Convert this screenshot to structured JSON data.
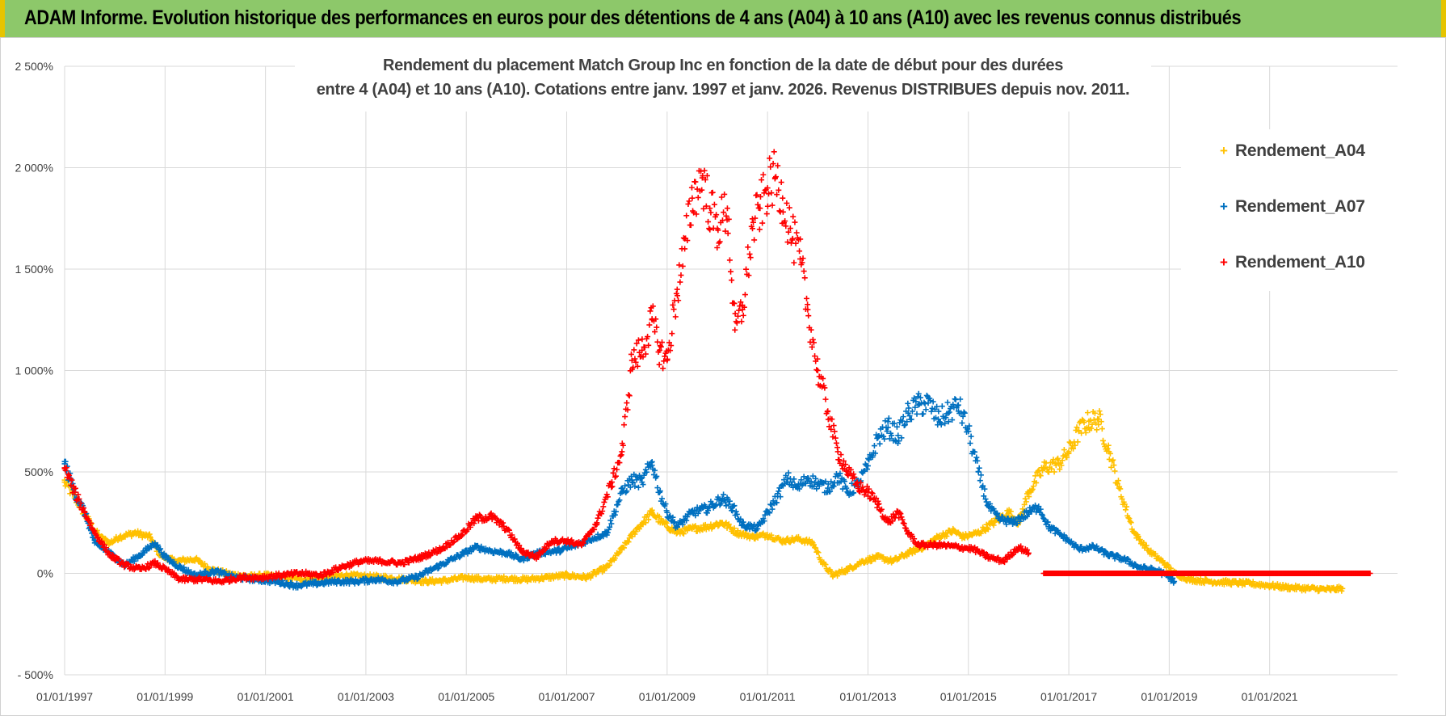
{
  "header": {
    "banner_text": "ADAM Informe. Evolution historique des performances en euros pour des détentions de 4 ans (A04) à 10 ans (A10) avec les revenus connus distribués"
  },
  "chart_data": {
    "type": "scatter",
    "title_line1": "Rendement du placement Match Group Inc en fonction de la date de début pour des durées",
    "title_line2": "entre 4 (A04) et 10 ans (A10). Cotations entre janv. 1997 et janv. 2026. Revenus DISTRIBUES depuis nov. 2011.",
    "xlabel": "",
    "ylabel": "",
    "x_range": [
      1997.0,
      2023.0
    ],
    "ylim": [
      -500,
      2500
    ],
    "y_ticks": [
      {
        "value": 2500,
        "label": "2 500%"
      },
      {
        "value": 2000,
        "label": "2 000%"
      },
      {
        "value": 1500,
        "label": "1 500%"
      },
      {
        "value": 1000,
        "label": "1 000%"
      },
      {
        "value": 500,
        "label": "500%"
      },
      {
        "value": 0,
        "label": "0%"
      },
      {
        "value": -500,
        "label": "- 500%"
      }
    ],
    "x_ticks": [
      {
        "value": 1997,
        "label": "01/01/1997"
      },
      {
        "value": 1999,
        "label": "01/01/1999"
      },
      {
        "value": 2001,
        "label": "01/01/2001"
      },
      {
        "value": 2003,
        "label": "01/01/2003"
      },
      {
        "value": 2005,
        "label": "01/01/2005"
      },
      {
        "value": 2007,
        "label": "01/01/2007"
      },
      {
        "value": 2009,
        "label": "01/01/2009"
      },
      {
        "value": 2011,
        "label": "01/01/2011"
      },
      {
        "value": 2013,
        "label": "01/01/2013"
      },
      {
        "value": 2015,
        "label": "01/01/2015"
      },
      {
        "value": 2017,
        "label": "01/01/2017"
      },
      {
        "value": 2019,
        "label": "01/01/2019"
      },
      {
        "value": 2021,
        "label": "01/01/2021"
      }
    ],
    "grid": true,
    "legend_position": "top-right",
    "series": [
      {
        "name": "Rendement_A04",
        "color": "#ffc000",
        "points": [
          [
            1997.0,
            450
          ],
          [
            1997.2,
            380
          ],
          [
            1997.5,
            250
          ],
          [
            1997.7,
            180
          ],
          [
            1997.9,
            150
          ],
          [
            1998.1,
            180
          ],
          [
            1998.4,
            200
          ],
          [
            1998.7,
            180
          ],
          [
            1998.9,
            90
          ],
          [
            1999.2,
            60
          ],
          [
            1999.6,
            70
          ],
          [
            1999.9,
            20
          ],
          [
            2000.3,
            -5
          ],
          [
            2000.7,
            -15
          ],
          [
            2001.0,
            -10
          ],
          [
            2001.4,
            -20
          ],
          [
            2001.8,
            -30
          ],
          [
            2002.2,
            -20
          ],
          [
            2002.6,
            -10
          ],
          [
            2003.0,
            -15
          ],
          [
            2003.4,
            -20
          ],
          [
            2003.8,
            -30
          ],
          [
            2004.2,
            -40
          ],
          [
            2004.6,
            -35
          ],
          [
            2005.0,
            -20
          ],
          [
            2005.4,
            -30
          ],
          [
            2005.8,
            -25
          ],
          [
            2006.2,
            -30
          ],
          [
            2006.6,
            -20
          ],
          [
            2007.0,
            -10
          ],
          [
            2007.4,
            -20
          ],
          [
            2007.8,
            30
          ],
          [
            2008.1,
            120
          ],
          [
            2008.4,
            220
          ],
          [
            2008.7,
            300
          ],
          [
            2008.9,
            250
          ],
          [
            2009.2,
            200
          ],
          [
            2009.5,
            220
          ],
          [
            2009.8,
            230
          ],
          [
            2010.1,
            250
          ],
          [
            2010.4,
            200
          ],
          [
            2010.7,
            180
          ],
          [
            2011.0,
            190
          ],
          [
            2011.3,
            160
          ],
          [
            2011.6,
            170
          ],
          [
            2011.9,
            150
          ],
          [
            2012.1,
            50
          ],
          [
            2012.3,
            -10
          ],
          [
            2012.6,
            20
          ],
          [
            2012.9,
            60
          ],
          [
            2013.2,
            80
          ],
          [
            2013.5,
            60
          ],
          [
            2013.8,
            100
          ],
          [
            2014.1,
            130
          ],
          [
            2014.4,
            180
          ],
          [
            2014.7,
            210
          ],
          [
            2014.9,
            180
          ],
          [
            2015.2,
            200
          ],
          [
            2015.5,
            250
          ],
          [
            2015.8,
            300
          ],
          [
            2016.0,
            250
          ],
          [
            2016.2,
            400
          ],
          [
            2016.5,
            520
          ],
          [
            2016.8,
            540
          ],
          [
            2017.0,
            600
          ],
          [
            2017.2,
            700
          ],
          [
            2017.4,
            750
          ],
          [
            2017.6,
            760
          ],
          [
            2017.8,
            600
          ],
          [
            2018.0,
            420
          ],
          [
            2018.3,
            200
          ],
          [
            2018.6,
            110
          ],
          [
            2018.9,
            50
          ],
          [
            2019.1,
            0
          ],
          [
            2019.4,
            -30
          ],
          [
            2019.8,
            -40
          ],
          [
            2020.2,
            -45
          ],
          [
            2020.6,
            -50
          ],
          [
            2021.0,
            -60
          ],
          [
            2021.4,
            -70
          ],
          [
            2021.8,
            -75
          ],
          [
            2022.2,
            -80
          ],
          [
            2022.45,
            -75
          ]
        ]
      },
      {
        "name": "Rendement_A07",
        "color": "#0070c0",
        "points": [
          [
            1997.0,
            540
          ],
          [
            1997.2,
            400
          ],
          [
            1997.4,
            300
          ],
          [
            1997.6,
            150
          ],
          [
            1997.9,
            100
          ],
          [
            1998.2,
            40
          ],
          [
            1998.5,
            90
          ],
          [
            1998.8,
            150
          ],
          [
            1999.0,
            80
          ],
          [
            1999.3,
            30
          ],
          [
            1999.6,
            -10
          ],
          [
            2000.0,
            10
          ],
          [
            2000.4,
            -20
          ],
          [
            2000.8,
            -30
          ],
          [
            2001.2,
            -40
          ],
          [
            2001.6,
            -60
          ],
          [
            2002.0,
            -50
          ],
          [
            2002.4,
            -40
          ],
          [
            2002.8,
            -40
          ],
          [
            2003.2,
            -30
          ],
          [
            2003.6,
            -40
          ],
          [
            2004.0,
            -20
          ],
          [
            2004.4,
            30
          ],
          [
            2004.8,
            80
          ],
          [
            2005.2,
            130
          ],
          [
            2005.5,
            110
          ],
          [
            2005.8,
            100
          ],
          [
            2006.1,
            70
          ],
          [
            2006.4,
            100
          ],
          [
            2006.8,
            110
          ],
          [
            2007.1,
            130
          ],
          [
            2007.4,
            160
          ],
          [
            2007.8,
            200
          ],
          [
            2008.1,
            400
          ],
          [
            2008.3,
            460
          ],
          [
            2008.5,
            450
          ],
          [
            2008.7,
            550
          ],
          [
            2008.85,
            400
          ],
          [
            2009.0,
            300
          ],
          [
            2009.2,
            230
          ],
          [
            2009.5,
            300
          ],
          [
            2009.8,
            320
          ],
          [
            2010.1,
            370
          ],
          [
            2010.3,
            330
          ],
          [
            2010.5,
            240
          ],
          [
            2010.8,
            220
          ],
          [
            2011.0,
            300
          ],
          [
            2011.2,
            380
          ],
          [
            2011.4,
            470
          ],
          [
            2011.6,
            420
          ],
          [
            2011.8,
            470
          ],
          [
            2012.0,
            440
          ],
          [
            2012.2,
            420
          ],
          [
            2012.4,
            480
          ],
          [
            2012.6,
            400
          ],
          [
            2012.8,
            440
          ],
          [
            2013.0,
            530
          ],
          [
            2013.2,
            670
          ],
          [
            2013.4,
            720
          ],
          [
            2013.6,
            680
          ],
          [
            2013.8,
            790
          ],
          [
            2014.0,
            830
          ],
          [
            2014.2,
            840
          ],
          [
            2014.4,
            760
          ],
          [
            2014.6,
            790
          ],
          [
            2014.8,
            830
          ],
          [
            2015.0,
            700
          ],
          [
            2015.2,
            500
          ],
          [
            2015.4,
            330
          ],
          [
            2015.6,
            270
          ],
          [
            2015.9,
            250
          ],
          [
            2016.2,
            300
          ],
          [
            2016.4,
            330
          ],
          [
            2016.6,
            230
          ],
          [
            2016.9,
            180
          ],
          [
            2017.2,
            120
          ],
          [
            2017.5,
            130
          ],
          [
            2017.8,
            90
          ],
          [
            2018.1,
            70
          ],
          [
            2018.4,
            30
          ],
          [
            2018.8,
            10
          ],
          [
            2019.0,
            -20
          ],
          [
            2019.1,
            -40
          ]
        ]
      },
      {
        "name": "Rendement_A10",
        "color": "#ff0000",
        "points": [
          [
            1997.0,
            520
          ],
          [
            1997.2,
            400
          ],
          [
            1997.4,
            300
          ],
          [
            1997.6,
            200
          ],
          [
            1997.9,
            90
          ],
          [
            1998.2,
            40
          ],
          [
            1998.5,
            20
          ],
          [
            1998.8,
            50
          ],
          [
            1999.0,
            20
          ],
          [
            1999.3,
            -30
          ],
          [
            1999.7,
            -30
          ],
          [
            2000.1,
            -40
          ],
          [
            2000.5,
            -20
          ],
          [
            2000.9,
            -20
          ],
          [
            2001.3,
            -10
          ],
          [
            2001.7,
            0
          ],
          [
            2002.1,
            -10
          ],
          [
            2002.5,
            30
          ],
          [
            2002.9,
            60
          ],
          [
            2003.3,
            60
          ],
          [
            2003.7,
            50
          ],
          [
            2004.1,
            80
          ],
          [
            2004.5,
            120
          ],
          [
            2004.9,
            190
          ],
          [
            2005.2,
            270
          ],
          [
            2005.5,
            280
          ],
          [
            2005.8,
            220
          ],
          [
            2006.1,
            110
          ],
          [
            2006.4,
            80
          ],
          [
            2006.7,
            160
          ],
          [
            2007.0,
            160
          ],
          [
            2007.3,
            140
          ],
          [
            2007.6,
            250
          ],
          [
            2007.9,
            450
          ],
          [
            2008.1,
            600
          ],
          [
            2008.3,
            1050
          ],
          [
            2008.5,
            1100
          ],
          [
            2008.7,
            1250
          ],
          [
            2008.85,
            1100
          ],
          [
            2009.0,
            1050
          ],
          [
            2009.2,
            1400
          ],
          [
            2009.35,
            1600
          ],
          [
            2009.5,
            1850
          ],
          [
            2009.7,
            1950
          ],
          [
            2009.85,
            1800
          ],
          [
            2010.0,
            1700
          ],
          [
            2010.2,
            1800
          ],
          [
            2010.35,
            1200
          ],
          [
            2010.5,
            1300
          ],
          [
            2010.7,
            1700
          ],
          [
            2010.85,
            1800
          ],
          [
            2011.0,
            1900
          ],
          [
            2011.15,
            1950
          ],
          [
            2011.3,
            1850
          ],
          [
            2011.5,
            1650
          ],
          [
            2011.65,
            1550
          ],
          [
            2011.8,
            1300
          ],
          [
            2012.0,
            1000
          ],
          [
            2012.2,
            800
          ],
          [
            2012.4,
            600
          ],
          [
            2012.6,
            500
          ],
          [
            2012.8,
            430
          ],
          [
            2013.0,
            400
          ],
          [
            2013.2,
            340
          ],
          [
            2013.4,
            250
          ],
          [
            2013.6,
            300
          ],
          [
            2013.8,
            200
          ],
          [
            2014.0,
            140
          ],
          [
            2014.4,
            140
          ],
          [
            2014.8,
            130
          ],
          [
            2015.1,
            120
          ],
          [
            2015.4,
            80
          ],
          [
            2015.7,
            60
          ],
          [
            2016.0,
            130
          ],
          [
            2016.2,
            100
          ]
        ],
        "flat_segment": {
          "x_start": 2016.5,
          "x_end": 2023.0,
          "value": 0
        }
      }
    ]
  },
  "legend": {
    "entries": [
      {
        "label": "Rendement_A04",
        "color": "#ffc000",
        "marker": "+"
      },
      {
        "label": "Rendement_A07",
        "color": "#0070c0",
        "marker": "+"
      },
      {
        "label": "Rendement_A10",
        "color": "#ff0000",
        "marker": "+"
      }
    ]
  }
}
